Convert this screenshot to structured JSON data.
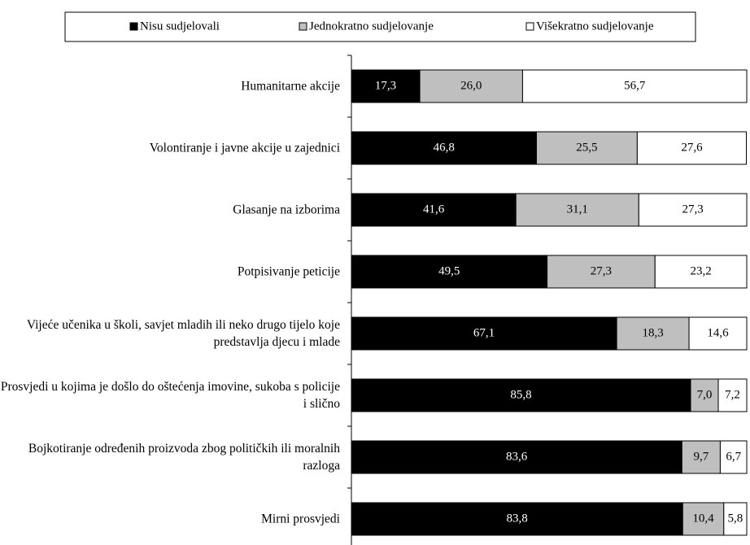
{
  "chart_data": {
    "type": "stacked-barh",
    "categories": [
      "Humanitarne akcije",
      "Volontiranje i javne akcije u zajednici",
      "Glasanje na izborima",
      "Potpisivanje peticije",
      "Vijeće učenika u školi, savjet mladih ili neko drugo tijelo koje predstavlja djecu i mlade",
      "Prosvjedi u kojima je došlo do oštećenja imovine, sukoba s policije i slično",
      "Bojkotiranje određenih proizvoda zbog političkih ili moralnih razloga",
      "Mirni prosvjedi"
    ],
    "series": [
      {
        "name": "Nisu sudjelovali",
        "color": "#000000",
        "values": [
          17.3,
          46.8,
          41.6,
          49.5,
          67.1,
          85.8,
          83.6,
          83.8
        ],
        "value_labels": [
          "17,3",
          "46,8",
          "41,6",
          "49,5",
          "67,1",
          "85,8",
          "83,6",
          "83,8"
        ]
      },
      {
        "name": "Jednokratno sudjelovanje",
        "color": "#bfbfbf",
        "values": [
          26.0,
          25.5,
          31.1,
          27.3,
          18.3,
          7.0,
          9.7,
          10.4
        ],
        "value_labels": [
          "26,0",
          "25,5",
          "31,1",
          "27,3",
          "18,3",
          "7,0",
          "9,7",
          "10,4"
        ]
      },
      {
        "name": "Višekratno sudjelovanje",
        "color": "#ffffff",
        "values": [
          56.7,
          27.6,
          27.3,
          23.2,
          14.6,
          7.2,
          6.7,
          5.8
        ],
        "value_labels": [
          "56,7",
          "27,6",
          "27,3",
          "23,2",
          "14,6",
          "7,2",
          "6,7",
          "5,8"
        ]
      }
    ],
    "xlim": [
      0,
      100
    ]
  }
}
